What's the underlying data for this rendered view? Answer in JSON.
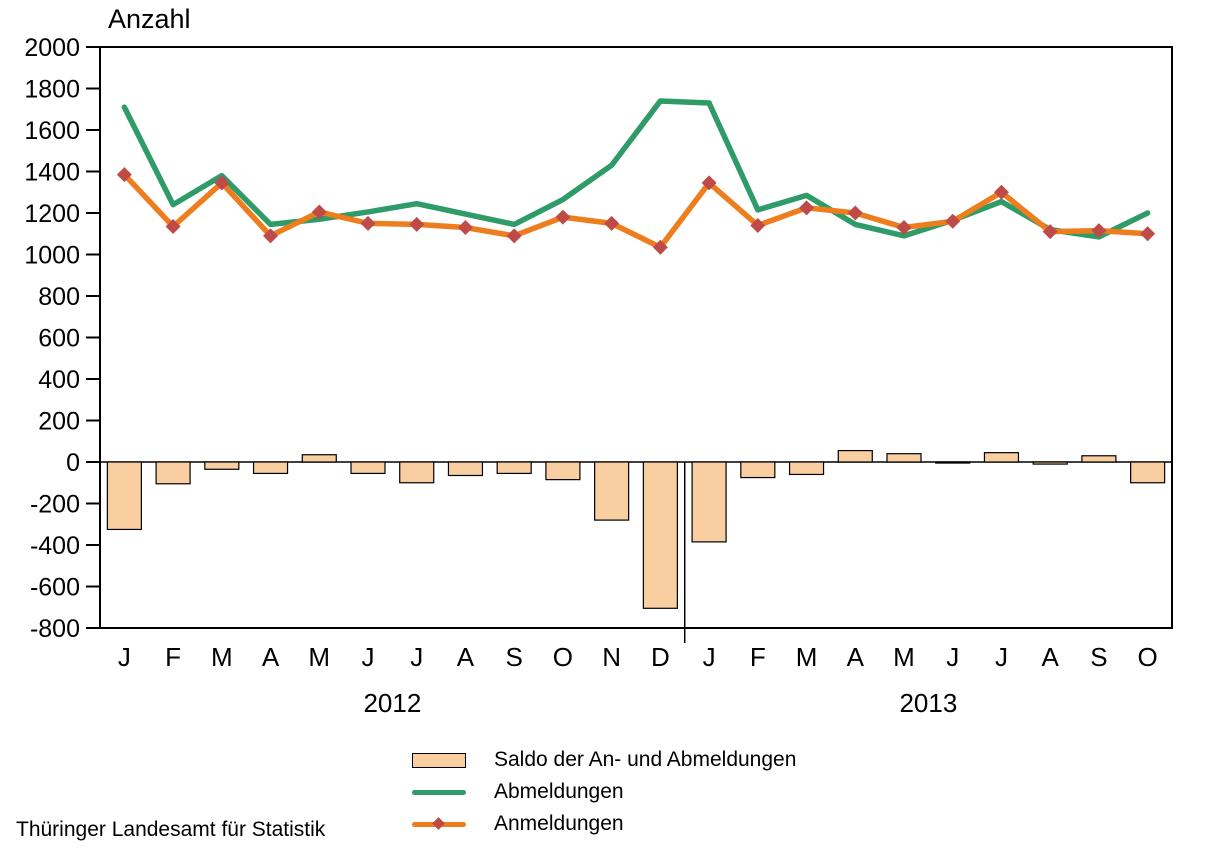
{
  "footer": {
    "source": "Thüringer Landesamt für Statistik"
  },
  "legend": [
    {
      "label": "Saldo der An- und Abmeldungen",
      "type": "bar",
      "color": "#F9CFA2",
      "border": "#000000"
    },
    {
      "label": "Abmeldungen",
      "type": "line",
      "color": "#2E9B68"
    },
    {
      "label": "Anmeldungen",
      "type": "line-marker",
      "color": "#EE7D1D",
      "marker_color": "#BE4B48"
    }
  ],
  "chart_data": {
    "type": "combo",
    "axis_title": "Anzahl",
    "ylim": [
      -800,
      2000
    ],
    "ytick_step": 200,
    "grid": false,
    "legend_position": "bottom",
    "categories": [
      "J",
      "F",
      "M",
      "A",
      "M",
      "J",
      "J",
      "A",
      "S",
      "O",
      "N",
      "D",
      "J",
      "F",
      "M",
      "A",
      "M",
      "J",
      "J",
      "A",
      "S",
      "O"
    ],
    "year_groups": [
      {
        "label": "2012",
        "months": 12
      },
      {
        "label": "2013",
        "months": 10
      }
    ],
    "series": [
      {
        "name": "Saldo der An- und Abmeldungen",
        "type": "bar",
        "color": "#F9CFA2",
        "border": "#000000",
        "values": [
          -325,
          -105,
          -35,
          -55,
          35,
          -55,
          -100,
          -65,
          -55,
          -85,
          -280,
          -705,
          -385,
          -75,
          -60,
          55,
          40,
          -5,
          45,
          -10,
          30,
          -100
        ]
      },
      {
        "name": "Abmeldungen",
        "type": "line",
        "color": "#2E9B68",
        "values": [
          1710,
          1240,
          1380,
          1145,
          1170,
          1205,
          1245,
          1195,
          1145,
          1265,
          1430,
          1740,
          1730,
          1215,
          1285,
          1145,
          1090,
          1165,
          1255,
          1120,
          1085,
          1200
        ]
      },
      {
        "name": "Anmeldungen",
        "type": "line",
        "marker": "diamond",
        "color": "#EE7D1D",
        "marker_color": "#BE4B48",
        "values": [
          1385,
          1135,
          1345,
          1090,
          1205,
          1150,
          1145,
          1130,
          1090,
          1180,
          1150,
          1035,
          1345,
          1140,
          1225,
          1200,
          1130,
          1160,
          1300,
          1110,
          1115,
          1100
        ]
      }
    ]
  }
}
